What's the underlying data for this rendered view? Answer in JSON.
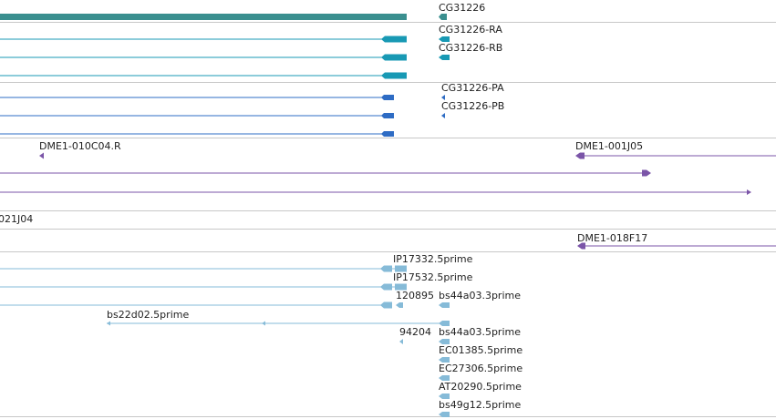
{
  "colors": {
    "gene": "#3a8f8f",
    "transcript": "#1899b4",
    "protein": "#2e6cc4",
    "clone": "#7b55a8",
    "est": "#86bbd8",
    "separator": "#c8c8c8"
  },
  "tracks": {
    "gene": {
      "label": "CG31226",
      "icon": "gene-track-icon"
    },
    "transcripts": [
      "CG31226-RA",
      "CG31226-RB"
    ],
    "proteins": [
      "CG31226-PA",
      "CG31226-PB"
    ],
    "clones_top": [
      "DME1-010C04.R",
      "DME1-001J05"
    ],
    "clone_partial": "021J04",
    "clone_mid": "DME1-018F17",
    "ests": [
      "IP17332.5prime",
      "IP17532.5prime",
      "120895",
      "bs44a03.3prime",
      "bs22d02.5prime",
      "94204",
      "bs44a03.5prime",
      "EC01385.5prime",
      "EC27306.5prime",
      "AT20290.5prime",
      "bs49g12.5prime"
    ]
  }
}
